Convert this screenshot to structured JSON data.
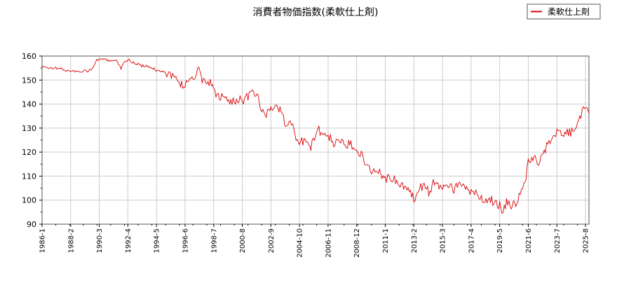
{
  "chart_data": {
    "type": "line",
    "title": "消費者物価指数(柔軟仕上剤)",
    "xlabel": "",
    "ylabel": "",
    "xlim": [
      "1986-1",
      "2025-11"
    ],
    "ylim": [
      90,
      160
    ],
    "yticks": [
      90,
      100,
      110,
      120,
      130,
      140,
      150,
      160
    ],
    "xticks": [
      "1986-1",
      "1988-2",
      "1990-3",
      "1992-4",
      "1994-5",
      "1996-6",
      "1998-7",
      "2000-8",
      "2002-9",
      "2004-10",
      "2006-11",
      "2008-12",
      "2011-1",
      "2013-2",
      "2015-3",
      "2017-4",
      "2019-5",
      "2021-6",
      "2023-7",
      "2025-8"
    ],
    "grid": true,
    "legend_position": "top-right",
    "series": [
      {
        "name": "柔軟仕上剤",
        "color": "#dd0000",
        "points": [
          [
            "1986-1",
            155.3
          ],
          [
            "1987-1",
            155.0
          ],
          [
            "1987-6",
            154.6
          ],
          [
            "1988-2",
            153.5
          ],
          [
            "1988-9",
            153.8
          ],
          [
            "1989-4",
            153.6
          ],
          [
            "1989-9",
            154.5
          ],
          [
            "1990-1",
            158.5
          ],
          [
            "1990-6",
            158.4
          ],
          [
            "1991-1",
            158.3
          ],
          [
            "1991-6",
            158.1
          ],
          [
            "1991-10",
            155.0
          ],
          [
            "1992-1",
            157.5
          ],
          [
            "1992-4",
            158.5
          ],
          [
            "1992-10",
            157.0
          ],
          [
            "1993-4",
            156.0
          ],
          [
            "1993-10",
            155.5
          ],
          [
            "1994-5",
            154.2
          ],
          [
            "1994-11",
            153.5
          ],
          [
            "1995-5",
            152.5
          ],
          [
            "1995-10",
            150.0
          ],
          [
            "1996-2",
            148.5
          ],
          [
            "1996-6",
            148.0
          ],
          [
            "1996-10",
            150.0
          ],
          [
            "1997-3",
            152.0
          ],
          [
            "1997-6",
            154.0
          ],
          [
            "1997-9",
            149.0
          ],
          [
            "1998-1",
            150.0
          ],
          [
            "1998-5",
            148.0
          ],
          [
            "1998-7",
            145.5
          ],
          [
            "1998-11",
            143.0
          ],
          [
            "1999-5",
            142.5
          ],
          [
            "1999-10",
            141.0
          ],
          [
            "2000-3",
            142.0
          ],
          [
            "2000-8",
            141.5
          ],
          [
            "2001-1",
            143.0
          ],
          [
            "2001-6",
            144.5
          ],
          [
            "2001-9",
            144.0
          ],
          [
            "2001-12",
            138.0
          ],
          [
            "2002-4",
            135.0
          ],
          [
            "2002-9",
            138.5
          ],
          [
            "2003-2",
            139.0
          ],
          [
            "2003-6",
            137.0
          ],
          [
            "2003-10",
            131.0
          ],
          [
            "2004-3",
            132.0
          ],
          [
            "2004-7",
            126.0
          ],
          [
            "2004-10",
            125.0
          ],
          [
            "2005-3",
            124.0
          ],
          [
            "2005-8",
            121.5
          ],
          [
            "2006-1",
            130.0
          ],
          [
            "2006-6",
            128.0
          ],
          [
            "2006-11",
            127.0
          ],
          [
            "2007-4",
            123.5
          ],
          [
            "2007-9",
            125.0
          ],
          [
            "2008-2",
            122.0
          ],
          [
            "2008-6",
            123.5
          ],
          [
            "2008-12",
            122.0
          ],
          [
            "2009-4",
            119.0
          ],
          [
            "2009-9",
            115.0
          ],
          [
            "2010-2",
            111.5
          ],
          [
            "2010-7",
            112.5
          ],
          [
            "2011-1",
            109.0
          ],
          [
            "2011-6",
            109.5
          ],
          [
            "2011-11",
            107.5
          ],
          [
            "2012-4",
            105.5
          ],
          [
            "2012-9",
            105.0
          ],
          [
            "2013-2",
            100.5
          ],
          [
            "2013-6",
            105.0
          ],
          [
            "2013-11",
            106.0
          ],
          [
            "2014-4",
            103.0
          ],
          [
            "2014-8",
            108.0
          ],
          [
            "2015-3",
            105.0
          ],
          [
            "2015-8",
            107.0
          ],
          [
            "2016-1",
            104.5
          ],
          [
            "2016-6",
            106.5
          ],
          [
            "2016-11",
            105.0
          ],
          [
            "2017-4",
            103.5
          ],
          [
            "2017-9",
            103.0
          ],
          [
            "2018-2",
            99.5
          ],
          [
            "2018-7",
            101.0
          ],
          [
            "2018-12",
            99.0
          ],
          [
            "2019-5",
            98.0
          ],
          [
            "2019-8",
            95.5
          ],
          [
            "2019-11",
            99.0
          ],
          [
            "2020-3",
            98.0
          ],
          [
            "2020-8",
            97.5
          ],
          [
            "2020-11",
            104.0
          ],
          [
            "2021-3",
            106.0
          ],
          [
            "2021-6",
            116.0
          ],
          [
            "2021-10",
            118.0
          ],
          [
            "2022-3",
            116.0
          ],
          [
            "2022-7",
            118.0
          ],
          [
            "2022-10",
            123.0
          ],
          [
            "2023-2",
            126.0
          ],
          [
            "2023-7",
            128.0
          ],
          [
            "2023-11",
            127.0
          ],
          [
            "2024-3",
            129.0
          ],
          [
            "2024-7",
            127.5
          ],
          [
            "2024-11",
            131.0
          ],
          [
            "2025-3",
            134.0
          ],
          [
            "2025-6",
            138.0
          ],
          [
            "2025-8",
            139.5
          ],
          [
            "2025-11",
            136.0
          ]
        ]
      }
    ]
  }
}
